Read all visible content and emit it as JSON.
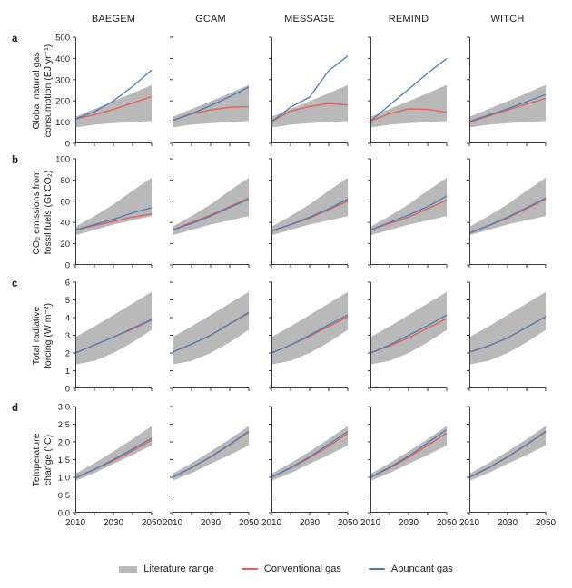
{
  "columns": [
    "BAEGEM",
    "GCAM",
    "MESSAGE",
    "REMIND",
    "WITCH"
  ],
  "legend": {
    "literature_label": "Literature range",
    "conventional_label": "Conventional gas",
    "abundant_label": "Abundant gas"
  },
  "colors": {
    "band": "#b9b9b9",
    "conventional": "#e0625c",
    "abundant": "#4d7db5",
    "axis": "#3d3d3d",
    "text": "#231f20"
  },
  "chart_data": [
    {
      "panel_letter": "a",
      "type": "line",
      "ylabel_line1": "Global natural gas",
      "ylabel_line2": "consumption (EJ yr⁻¹)",
      "ylim": [
        0,
        500
      ],
      "ytick_labels": [
        "0",
        "100",
        "200",
        "300",
        "400",
        "500"
      ],
      "x": [
        2010,
        2020,
        2030,
        2040,
        2050
      ],
      "xtick_labels": [
        "2010",
        "2030",
        "2050"
      ],
      "literature_range": {
        "low": [
          75,
          88,
          95,
          100,
          105
        ],
        "high": [
          125,
          162,
          198,
          236,
          275
        ]
      },
      "series": [
        {
          "model": "BAEGEM",
          "conventional_gas": [
            115,
            135,
            160,
            190,
            220
          ],
          "abundant_gas": [
            115,
            150,
            200,
            268,
            345
          ]
        },
        {
          "model": "GCAM",
          "conventional_gas": [
            108,
            138,
            158,
            170,
            173
          ],
          "abundant_gas": [
            108,
            140,
            178,
            220,
            265
          ]
        },
        {
          "model": "MESSAGE",
          "conventional_gas": [
            102,
            152,
            174,
            188,
            181
          ],
          "abundant_gas": [
            102,
            170,
            218,
            342,
            412
          ]
        },
        {
          "model": "REMIND",
          "conventional_gas": [
            105,
            140,
            162,
            160,
            147
          ],
          "abundant_gas": [
            105,
            180,
            255,
            330,
            400
          ]
        },
        {
          "model": "WITCH",
          "conventional_gas": [
            100,
            128,
            157,
            185,
            212
          ],
          "abundant_gas": [
            103,
            133,
            163,
            196,
            230
          ]
        }
      ]
    },
    {
      "panel_letter": "b",
      "type": "line",
      "ylabel_line1": "CO₂ emissions from",
      "ylabel_line2": "fossil fuels (Gt CO₂)",
      "ylim": [
        0,
        100
      ],
      "ytick_labels": [
        "0",
        "20",
        "40",
        "60",
        "80",
        "100"
      ],
      "x": [
        2010,
        2020,
        2030,
        2040,
        2050
      ],
      "xtick_labels": [
        "2010",
        "2030",
        "2050"
      ],
      "literature_range": {
        "low": [
          28,
          33,
          38,
          42,
          46
        ],
        "high": [
          36,
          46,
          57,
          70,
          82
        ]
      },
      "series": [
        {
          "model": "BAEGEM",
          "conventional_gas": [
            33,
            37,
            41,
            45,
            48
          ],
          "abundant_gas": [
            33,
            38,
            43,
            49,
            54
          ]
        },
        {
          "model": "GCAM",
          "conventional_gas": [
            33,
            40,
            47,
            55,
            63
          ],
          "abundant_gas": [
            33,
            39,
            46,
            54,
            62
          ]
        },
        {
          "model": "MESSAGE",
          "conventional_gas": [
            32,
            38,
            44,
            52,
            60
          ],
          "abundant_gas": [
            32,
            38,
            45,
            53,
            62
          ]
        },
        {
          "model": "REMIND",
          "conventional_gas": [
            33,
            39,
            45,
            53,
            61
          ],
          "abundant_gas": [
            33,
            40,
            47,
            55,
            65
          ]
        },
        {
          "model": "WITCH",
          "conventional_gas": [
            30,
            37,
            44,
            53,
            62
          ],
          "abundant_gas": [
            30,
            37,
            45,
            54,
            63
          ]
        }
      ]
    },
    {
      "panel_letter": "c",
      "type": "line",
      "ylabel_line1": "Total radiative",
      "ylabel_line2": "forcing (W m⁻²)",
      "ylim": [
        0,
        6
      ],
      "ytick_labels": [
        "0",
        "1",
        "2",
        "3",
        "4",
        "5",
        "6"
      ],
      "x": [
        2010,
        2020,
        2030,
        2040,
        2050
      ],
      "xtick_labels": [
        "2010",
        "2030",
        "2050"
      ],
      "literature_range": {
        "low": [
          1.35,
          1.55,
          2.0,
          2.6,
          3.3
        ],
        "high": [
          2.9,
          3.5,
          4.15,
          4.8,
          5.45
        ]
      },
      "series": [
        {
          "model": "BAEGEM",
          "conventional_gas": [
            2.0,
            2.45,
            2.9,
            3.35,
            3.85
          ],
          "abundant_gas": [
            2.0,
            2.45,
            2.9,
            3.4,
            3.9
          ]
        },
        {
          "model": "GCAM",
          "conventional_gas": [
            2.05,
            2.5,
            3.0,
            3.65,
            4.25
          ],
          "abundant_gas": [
            2.05,
            2.5,
            3.0,
            3.65,
            4.3
          ]
        },
        {
          "model": "MESSAGE",
          "conventional_gas": [
            2.0,
            2.45,
            2.95,
            3.5,
            4.05
          ],
          "abundant_gas": [
            2.0,
            2.45,
            3.0,
            3.6,
            4.15
          ]
        },
        {
          "model": "REMIND",
          "conventional_gas": [
            2.0,
            2.4,
            2.85,
            3.4,
            3.95
          ],
          "abundant_gas": [
            2.0,
            2.45,
            3.0,
            3.55,
            4.15
          ]
        },
        {
          "model": "WITCH",
          "conventional_gas": [
            2.05,
            2.4,
            2.85,
            3.45,
            4.05
          ],
          "abundant_gas": [
            2.05,
            2.4,
            2.85,
            3.45,
            4.05
          ]
        }
      ]
    },
    {
      "panel_letter": "d",
      "type": "line",
      "ylabel_line1": "Temperature",
      "ylabel_line2": "change (°C)",
      "ylim": [
        0,
        3
      ],
      "ytick_labels": [
        "0.0",
        "0.5",
        "1.0",
        "1.5",
        "2.0",
        "2.5",
        "3.0"
      ],
      "x": [
        2010,
        2020,
        2030,
        2040,
        2050
      ],
      "xtick_labels": [
        "2010",
        "2030",
        "2050"
      ],
      "literature_range": {
        "low": [
          0.9,
          1.12,
          1.38,
          1.63,
          1.9
        ],
        "high": [
          1.1,
          1.4,
          1.73,
          2.08,
          2.45
        ]
      },
      "series": [
        {
          "model": "BAEGEM",
          "conventional_gas": [
            0.98,
            1.22,
            1.47,
            1.75,
            2.05
          ],
          "abundant_gas": [
            0.98,
            1.23,
            1.5,
            1.8,
            2.1
          ]
        },
        {
          "model": "GCAM",
          "conventional_gas": [
            1.0,
            1.27,
            1.57,
            1.92,
            2.28
          ],
          "abundant_gas": [
            1.0,
            1.27,
            1.58,
            1.93,
            2.3
          ]
        },
        {
          "model": "MESSAGE",
          "conventional_gas": [
            1.0,
            1.26,
            1.55,
            1.88,
            2.24
          ],
          "abundant_gas": [
            1.0,
            1.27,
            1.58,
            1.93,
            2.3
          ]
        },
        {
          "model": "REMIND",
          "conventional_gas": [
            1.0,
            1.26,
            1.56,
            1.9,
            2.25
          ],
          "abundant_gas": [
            1.0,
            1.28,
            1.6,
            1.97,
            2.35
          ]
        },
        {
          "model": "WITCH",
          "conventional_gas": [
            1.0,
            1.26,
            1.57,
            1.92,
            2.28
          ],
          "abundant_gas": [
            1.0,
            1.27,
            1.58,
            1.93,
            2.3
          ]
        }
      ]
    }
  ]
}
